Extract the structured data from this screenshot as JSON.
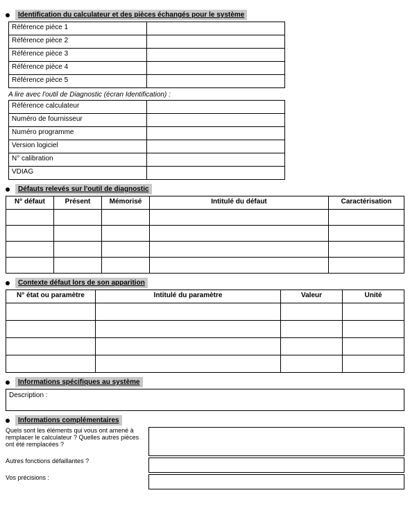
{
  "section1": {
    "title": "Identification du calculateur et des pièces échangés pour le système",
    "parts": [
      "Référence pièce 1",
      "Référence pièce 2",
      "Référence pièce 3",
      "Référence pièce 4",
      "Référence pièce 5"
    ],
    "note": "A lire avec l'outil de Diagnostic (écran Identification) :",
    "rows": [
      "Référence calculateur",
      "Numéro de fournisseur",
      "Numéro programme",
      "Version logiciel",
      "N° calibration",
      "VDIAG"
    ]
  },
  "section2": {
    "title": "Défauts relevés sur l'outil de diagnostic",
    "headers": [
      "N° défaut",
      "Présent",
      "Mémorisé",
      "Intitulé du défaut",
      "Caractérisation"
    ],
    "row_count": 4
  },
  "section3": {
    "title": "Contexte défaut lors de son apparition",
    "headers": [
      "N° état ou paramètre",
      "Intitulé du paramètre",
      "Valeur",
      "Unité"
    ],
    "row_count": 4
  },
  "section4": {
    "title": "Informations spécifiques au système",
    "description_label": "Description :"
  },
  "section5": {
    "title": "Informations complémentaires",
    "questions": [
      "Quels sont les éléments qui vous ont amené à remplacer le calculateur ? Quelles autres pièces ont été remplacées ?",
      "Autres fonctions défaillantes ?",
      "Vos précisions :"
    ]
  }
}
